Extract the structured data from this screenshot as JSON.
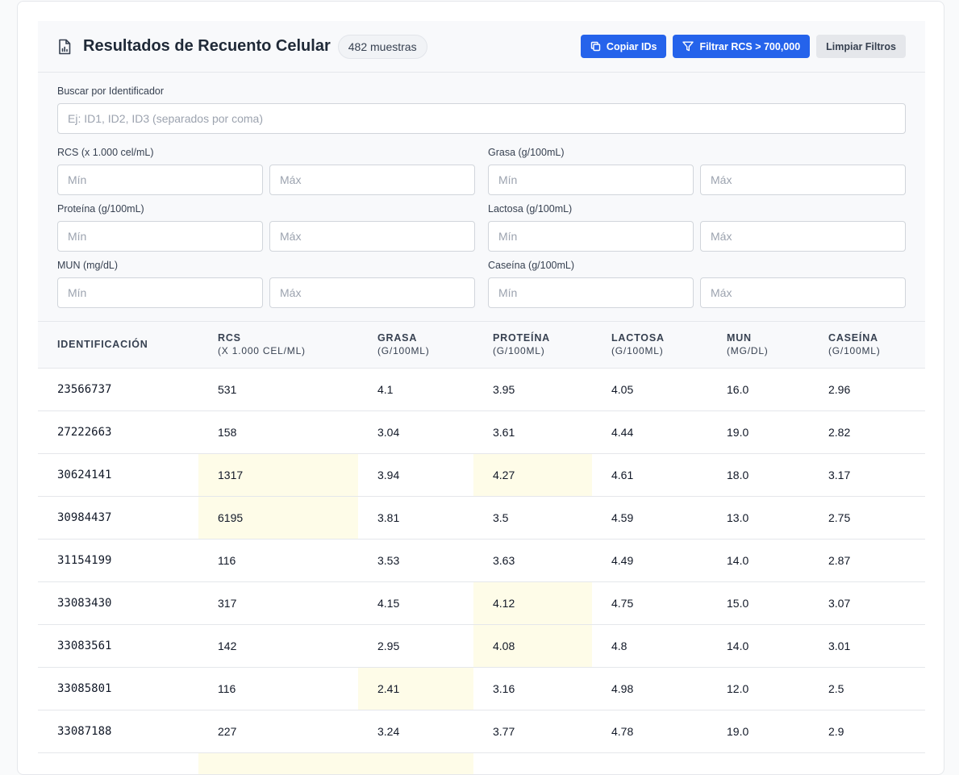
{
  "header": {
    "title": "Resultados de Recuento Celular",
    "count_badge": "482 muestras",
    "buttons": {
      "copy_ids": "Copiar IDs",
      "filter_rcs": "Filtrar RCS > 700,000",
      "clear_filters": "Limpiar Filtros"
    }
  },
  "filters": {
    "search": {
      "label": "Buscar por Identificador",
      "placeholder": "Ej: ID1, ID2, ID3 (separados por coma)"
    },
    "min_placeholder": "Mín",
    "max_placeholder": "Máx",
    "ranges": [
      {
        "label": "RCS (x 1.000 cel/mL)"
      },
      {
        "label": "Grasa (g/100mL)"
      },
      {
        "label": "Proteína (g/100mL)"
      },
      {
        "label": "Lactosa (g/100mL)"
      },
      {
        "label": "MUN (mg/dL)"
      },
      {
        "label": "Caseína (g/100mL)"
      }
    ]
  },
  "table": {
    "columns": [
      {
        "title": "IDENTIFICACIÓN",
        "sub": ""
      },
      {
        "title": "RCS",
        "sub": "(X 1.000 CEL/ML)"
      },
      {
        "title": "GRASA",
        "sub": "(G/100ML)"
      },
      {
        "title": "PROTEÍNA",
        "sub": "(G/100ML)"
      },
      {
        "title": "LACTOSA",
        "sub": "(G/100ML)"
      },
      {
        "title": "MUN",
        "sub": "(MG/DL)"
      },
      {
        "title": "CASEÍNA",
        "sub": "(G/100ML)"
      }
    ],
    "rows": [
      {
        "cells": [
          "23566737",
          "531",
          "4.1",
          "3.95",
          "4.05",
          "16.0",
          "2.96"
        ],
        "highlight": []
      },
      {
        "cells": [
          "27222663",
          "158",
          "3.04",
          "3.61",
          "4.44",
          "19.0",
          "2.82"
        ],
        "highlight": []
      },
      {
        "cells": [
          "30624141",
          "1317",
          "3.94",
          "4.27",
          "4.61",
          "18.0",
          "3.17"
        ],
        "highlight": [
          1,
          3
        ]
      },
      {
        "cells": [
          "30984437",
          "6195",
          "3.81",
          "3.5",
          "4.59",
          "13.0",
          "2.75"
        ],
        "highlight": [
          1
        ]
      },
      {
        "cells": [
          "31154199",
          "116",
          "3.53",
          "3.63",
          "4.49",
          "14.0",
          "2.87"
        ],
        "highlight": []
      },
      {
        "cells": [
          "33083430",
          "317",
          "4.15",
          "4.12",
          "4.75",
          "15.0",
          "3.07"
        ],
        "highlight": [
          3
        ]
      },
      {
        "cells": [
          "33083561",
          "142",
          "2.95",
          "4.08",
          "4.8",
          "14.0",
          "3.01"
        ],
        "highlight": [
          3
        ]
      },
      {
        "cells": [
          "33085801",
          "116",
          "2.41",
          "3.16",
          "4.98",
          "12.0",
          "2.5"
        ],
        "highlight": [
          2
        ]
      },
      {
        "cells": [
          "33087188",
          "227",
          "3.24",
          "3.77",
          "4.78",
          "19.0",
          "2.9"
        ],
        "highlight": []
      },
      {
        "cells": [
          "",
          "",
          "",
          "",
          "",
          "",
          ""
        ],
        "highlight": [
          1,
          2
        ]
      }
    ]
  },
  "colors": {
    "accent": "#2563eb",
    "highlight": "#fefce8"
  }
}
